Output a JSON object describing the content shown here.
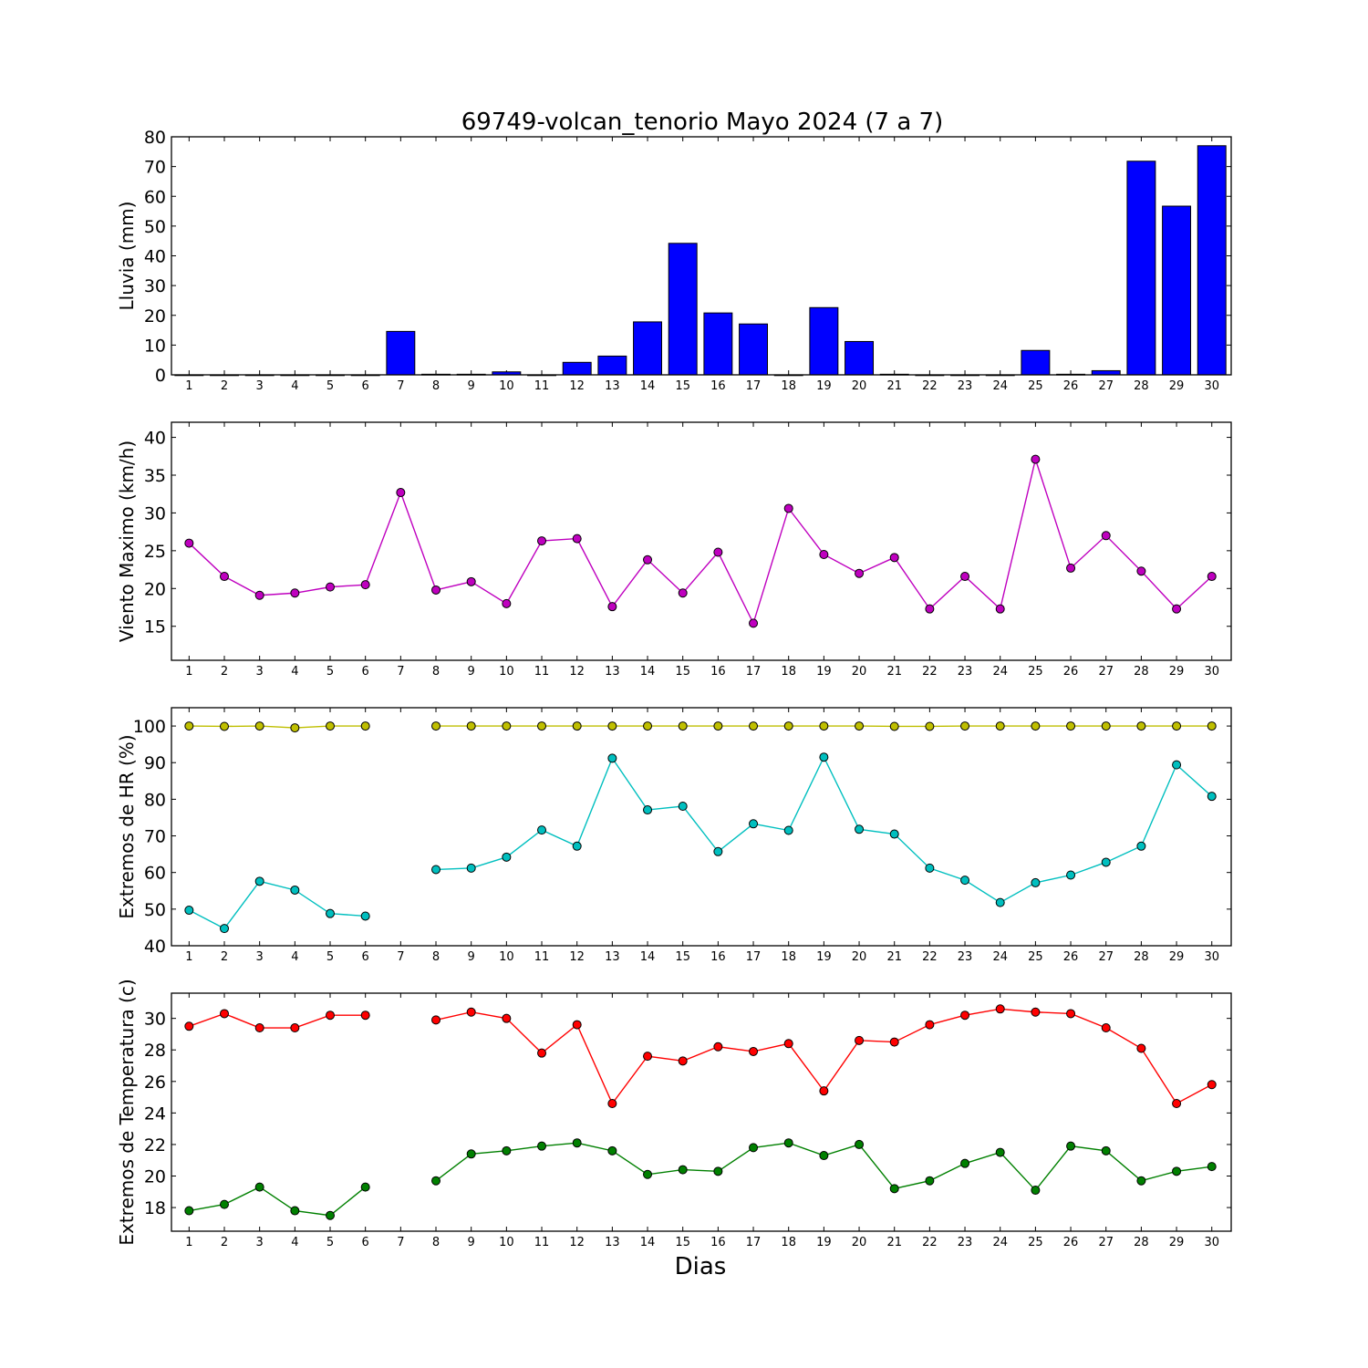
{
  "title": "69749-volcan_tenorio Mayo 2024  (7 a 7)",
  "xlabel": "Dias",
  "chart_data": [
    {
      "type": "bar",
      "ylabel": "Lluvia (mm)",
      "ylim": [
        0,
        80
      ],
      "yticks": [
        0,
        10,
        20,
        30,
        40,
        50,
        60,
        70,
        80
      ],
      "x": [
        1,
        2,
        3,
        4,
        5,
        6,
        7,
        8,
        9,
        10,
        11,
        12,
        13,
        14,
        15,
        16,
        17,
        18,
        19,
        20,
        21,
        22,
        23,
        24,
        25,
        26,
        27,
        28,
        29,
        30
      ],
      "series": [
        {
          "color": "#0000ff",
          "values": [
            0,
            0,
            0,
            0,
            0,
            0,
            14.6,
            0.2,
            0.2,
            1.0,
            0,
            4.2,
            6.3,
            17.8,
            44.2,
            20.8,
            17.1,
            0,
            22.6,
            11.2,
            0.2,
            0,
            0,
            0,
            8.2,
            0.2,
            1.4,
            71.8,
            56.7,
            77.0
          ]
        }
      ]
    },
    {
      "type": "line",
      "ylabel": "Viento Maximo (km/h)",
      "ylim": [
        10.5,
        42
      ],
      "yticks": [
        15,
        20,
        25,
        30,
        35,
        40
      ],
      "x": [
        1,
        2,
        3,
        4,
        5,
        6,
        7,
        8,
        9,
        10,
        11,
        12,
        13,
        14,
        15,
        16,
        17,
        18,
        19,
        20,
        21,
        22,
        23,
        24,
        25,
        26,
        27,
        28,
        29,
        30
      ],
      "series": [
        {
          "color": "#bf00bf",
          "values": [
            26.0,
            21.6,
            19.1,
            19.4,
            20.2,
            20.5,
            32.7,
            19.8,
            20.9,
            18.0,
            26.3,
            26.6,
            17.6,
            23.8,
            19.4,
            24.8,
            15.4,
            30.6,
            24.5,
            22.0,
            24.1,
            17.3,
            21.6,
            17.3,
            37.1,
            22.7,
            27.0,
            22.3,
            17.3,
            21.6
          ]
        }
      ]
    },
    {
      "type": "line",
      "ylabel": "Extremos de HR (%)",
      "ylim": [
        40,
        105
      ],
      "yticks": [
        40,
        50,
        60,
        70,
        80,
        90,
        100
      ],
      "x": [
        1,
        2,
        3,
        4,
        5,
        6,
        7,
        8,
        9,
        10,
        11,
        12,
        13,
        14,
        15,
        16,
        17,
        18,
        19,
        20,
        21,
        22,
        23,
        24,
        25,
        26,
        27,
        28,
        29,
        30
      ],
      "series": [
        {
          "color": "#bfbf00",
          "values": [
            100,
            99.9,
            100,
            99.5,
            100,
            100,
            null,
            100,
            100,
            100,
            100,
            100,
            100,
            100,
            100,
            100,
            100,
            100,
            100,
            100,
            99.9,
            99.9,
            100,
            100,
            100,
            100,
            100,
            100,
            100,
            100
          ]
        },
        {
          "color": "#00bfbf",
          "values": [
            49.7,
            44.7,
            57.6,
            55.2,
            48.8,
            48.1,
            null,
            60.8,
            61.2,
            64.2,
            71.6,
            67.2,
            91.2,
            77.1,
            78.1,
            65.7,
            73.3,
            71.5,
            91.5,
            71.8,
            70.5,
            61.2,
            57.9,
            51.8,
            57.2,
            59.3,
            62.8,
            67.2,
            89.4,
            80.8
          ]
        }
      ]
    },
    {
      "type": "line",
      "ylabel": "Extremos de Temperatura (c)",
      "ylim": [
        16.5,
        31.6
      ],
      "yticks": [
        18,
        20,
        22,
        24,
        26,
        28,
        30
      ],
      "x": [
        1,
        2,
        3,
        4,
        5,
        6,
        7,
        8,
        9,
        10,
        11,
        12,
        13,
        14,
        15,
        16,
        17,
        18,
        19,
        20,
        21,
        22,
        23,
        24,
        25,
        26,
        27,
        28,
        29,
        30
      ],
      "series": [
        {
          "color": "#ff0000",
          "values": [
            29.5,
            30.3,
            29.4,
            29.4,
            30.2,
            30.2,
            null,
            29.9,
            30.4,
            30.0,
            27.8,
            29.6,
            24.6,
            27.6,
            27.3,
            28.2,
            27.9,
            28.4,
            25.4,
            28.6,
            28.5,
            29.6,
            30.2,
            30.6,
            30.4,
            30.3,
            29.4,
            28.1,
            24.6,
            25.8
          ]
        },
        {
          "color": "#008000",
          "values": [
            17.8,
            18.2,
            19.3,
            17.8,
            17.5,
            19.3,
            null,
            19.7,
            21.4,
            21.6,
            21.9,
            22.1,
            21.6,
            20.1,
            20.4,
            20.3,
            21.8,
            22.1,
            21.3,
            22.0,
            19.2,
            19.7,
            20.8,
            21.5,
            19.1,
            21.9,
            21.6,
            19.7,
            20.3,
            20.6
          ]
        }
      ]
    }
  ]
}
